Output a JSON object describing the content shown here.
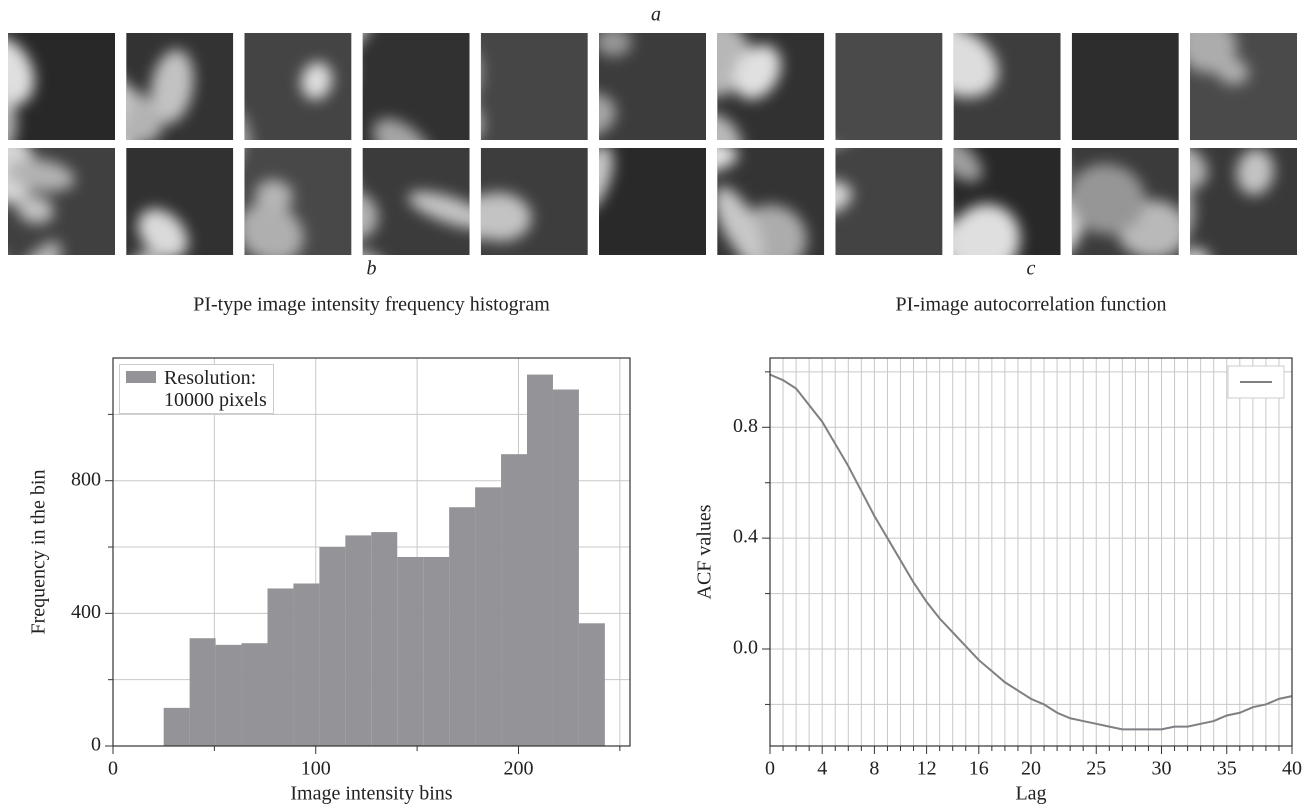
{
  "image_panel": {
    "label": "a"
  },
  "chart_data": [
    {
      "type": "histogram",
      "label": "b",
      "title": "PI-type image intensity frequency histogram",
      "x_label": "Image intensity bins",
      "y_label": "Frequency in the bin",
      "bins": [
        25,
        37.8,
        50.6,
        63.4,
        76.2,
        89,
        101.8,
        114.6,
        127.4,
        140.2,
        153,
        165.8,
        178.6,
        191.4,
        204.2,
        217,
        229.8,
        242.6
      ],
      "series": [
        {
          "name": "Resolution:\n10000 pixels",
          "color": "#939398",
          "values": [
            115,
            325,
            305,
            310,
            475,
            490,
            600,
            635,
            645,
            570,
            570,
            720,
            780,
            880,
            1120,
            1075,
            370
          ]
        }
      ],
      "xlim": [
        0,
        255
      ],
      "ylim": [
        0,
        1170
      ],
      "xticks": [
        0,
        100,
        200
      ],
      "minor_xticks": [
        50,
        150,
        250
      ],
      "yticks": [
        0,
        400,
        800
      ],
      "minor_yticks": [
        200,
        600,
        1000
      ],
      "grid": true,
      "legend": "upper left"
    },
    {
      "type": "line",
      "label": "c",
      "title": "PI-image autocorrelation function",
      "x_label": "Lag",
      "y_label": "ACF values",
      "x": [
        0,
        1,
        2,
        3,
        4,
        5,
        6,
        7,
        8,
        9,
        10,
        11,
        12,
        13,
        14,
        15,
        16,
        17,
        18,
        19,
        20,
        21,
        22,
        23,
        24,
        25,
        26,
        27,
        28,
        29,
        30,
        31,
        32,
        33,
        34,
        35,
        36,
        37,
        38,
        39,
        40
      ],
      "series": [
        {
          "color": "#7f7f84",
          "values": [
            0.99,
            0.97,
            0.94,
            0.88,
            0.82,
            0.74,
            0.66,
            0.57,
            0.48,
            0.4,
            0.32,
            0.24,
            0.17,
            0.11,
            0.06,
            0.01,
            -0.04,
            -0.08,
            -0.12,
            -0.15,
            -0.18,
            -0.2,
            -0.23,
            -0.25,
            -0.26,
            -0.27,
            -0.28,
            -0.29,
            -0.29,
            -0.29,
            -0.29,
            -0.28,
            -0.28,
            -0.27,
            -0.26,
            -0.24,
            -0.23,
            -0.21,
            -0.2,
            -0.18,
            -0.17
          ]
        }
      ],
      "xlim": [
        0,
        40
      ],
      "ylim": [
        -0.35,
        1.05
      ],
      "xticks": [
        0,
        4,
        8,
        12,
        16,
        20,
        25,
        30,
        35,
        40
      ],
      "minor_xticks": [
        1,
        2,
        3,
        5,
        6,
        7,
        9,
        10,
        11,
        13,
        14,
        15,
        17,
        18,
        19,
        21,
        22,
        23,
        24,
        26,
        27,
        28,
        29,
        31,
        32,
        33,
        34,
        36,
        37,
        38,
        39
      ],
      "yticks": [
        {
          "value": 0,
          "label": "0.0"
        },
        0.4,
        0.8
      ],
      "minor_yticks": [
        -0.2,
        0.2,
        0.6,
        1.0
      ],
      "grid": true,
      "legend": "upper right"
    }
  ]
}
